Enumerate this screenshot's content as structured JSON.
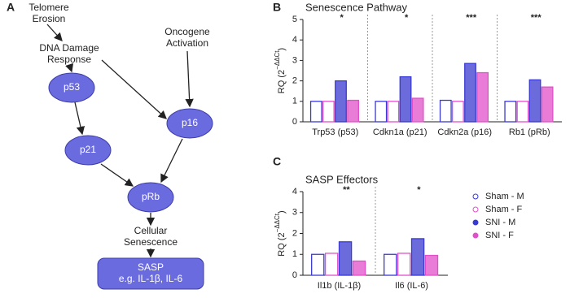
{
  "panel_labels": [
    "A",
    "B",
    "C"
  ],
  "diagram": {
    "nodes": [
      {
        "lines": [
          "Telomere",
          "Erosion"
        ]
      },
      {
        "lines": [
          "Oncogene",
          "Activation"
        ]
      },
      {
        "lines": [
          "DNA Damage",
          "Response"
        ]
      },
      {
        "lines": [
          "p53"
        ]
      },
      {
        "lines": [
          "p16"
        ]
      },
      {
        "lines": [
          "p21"
        ]
      },
      {
        "lines": [
          "pRb"
        ]
      },
      {
        "lines": [
          "Cellular",
          "Senescence"
        ]
      },
      {
        "lines": [
          "SASP",
          "e.g. IL-1β, IL-6"
        ]
      }
    ]
  },
  "chart_data": [
    {
      "type": "bar",
      "title": "Senescence Pathway",
      "y_label": {
        "text": "RQ (2",
        "superscript": "−ΔΔCt",
        "close": ")"
      },
      "categories": [
        "Trp53 (p53)",
        "Cdkn1a (p21)",
        "Cdkn2a (p16)",
        "Rb1 (pRb)"
      ],
      "significance": [
        "*",
        "*",
        "***",
        "***"
      ],
      "series": [
        {
          "color": "#3a3ad0",
          "fill_style": "open",
          "values": [
            1.0,
            1.0,
            1.05,
            1.0
          ]
        },
        {
          "color": "#e050c8",
          "fill_style": "open",
          "values": [
            1.0,
            1.0,
            1.0,
            1.0
          ]
        },
        {
          "color": "#3a3ad0",
          "fill_style": "filled",
          "values": [
            2.0,
            2.2,
            2.85,
            2.05
          ]
        },
        {
          "color": "#e050c8",
          "fill_style": "filled",
          "values": [
            1.05,
            1.15,
            2.4,
            1.7
          ]
        }
      ],
      "ylim": [
        0,
        5
      ],
      "yticks": [
        0,
        1,
        2,
        3,
        4,
        5
      ],
      "legend": false
    },
    {
      "type": "bar",
      "title": "SASP Effectors",
      "y_label": {
        "text": "RQ (2",
        "superscript": "−ΔΔCt",
        "close": ")"
      },
      "categories": [
        "Il1b (IL-1β)",
        "Il6 (IL-6)"
      ],
      "significance": [
        "**",
        "*"
      ],
      "series": [
        {
          "name": "Sham - M",
          "color": "#3a3ad0",
          "fill_style": "open",
          "values": [
            1.0,
            1.0
          ]
        },
        {
          "name": "Sham - F",
          "color": "#e050c8",
          "fill_style": "open",
          "values": [
            1.05,
            1.05
          ]
        },
        {
          "name": "SNI - M",
          "color": "#3a3ad0",
          "fill_style": "filled",
          "values": [
            1.6,
            1.75
          ]
        },
        {
          "name": "SNI - F",
          "color": "#e050c8",
          "fill_style": "filled",
          "values": [
            0.68,
            0.95
          ]
        }
      ],
      "ylim": [
        0,
        4
      ],
      "yticks": [
        0,
        1,
        2,
        3,
        4
      ],
      "legend": true
    }
  ]
}
